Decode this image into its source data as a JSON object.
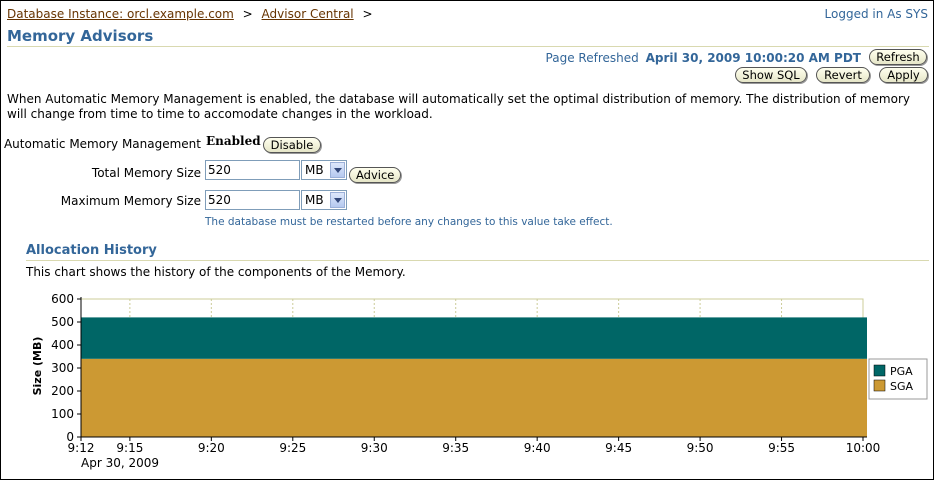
{
  "breadcrumb": {
    "items": [
      "Database Instance: orcl.example.com",
      "Advisor Central"
    ],
    "separator": ">"
  },
  "login": "Logged in As SYS",
  "page_title": "Memory Advisors",
  "refresh": {
    "label": "Page Refreshed",
    "timestamp": "April 30, 2009 10:00:20 AM PDT",
    "button": "Refresh"
  },
  "actions": {
    "show_sql": "Show SQL",
    "revert": "Revert",
    "apply": "Apply"
  },
  "description": "When Automatic Memory Management is enabled, the database will automatically set the optimal distribution of memory. The distribution of memory will change from time to time to accomodate changes in the workload.",
  "amm": {
    "label": "Automatic Memory Management",
    "status": "Enabled",
    "button": "Disable"
  },
  "total_memory": {
    "label": "Total Memory Size",
    "value": "520",
    "unit": "MB",
    "advice_button": "Advice"
  },
  "max_memory": {
    "label": "Maximum Memory Size",
    "value": "520",
    "unit": "MB",
    "hint": "The database must be restarted before any changes to this value take effect."
  },
  "allocation": {
    "title": "Allocation History",
    "description": "This chart shows the history of the components of the Memory."
  },
  "chart_data": {
    "type": "area",
    "ylabel": "Size (MB)",
    "ylim": [
      0,
      600
    ],
    "y_ticks": [
      "0",
      "100",
      "200",
      "300",
      "400",
      "500",
      "600"
    ],
    "x_ticks": [
      "9:12",
      "9:15",
      "9:20",
      "9:25",
      "9:30",
      "9:35",
      "9:40",
      "9:45",
      "9:50",
      "9:55",
      "10:00"
    ],
    "x_tick_minutes": [
      0,
      3,
      8,
      13,
      18,
      23,
      28,
      33,
      38,
      43,
      48
    ],
    "x_sublabel": "Apr 30, 2009",
    "stacked": true,
    "grid": true,
    "legend_position": "right",
    "series": [
      {
        "name": "PGA",
        "color": "#006666",
        "values": [
          180,
          180
        ]
      },
      {
        "name": "SGA",
        "color": "#cc9933",
        "values": [
          340,
          340
        ]
      }
    ],
    "x": [
      "9:12",
      "10:00"
    ]
  }
}
